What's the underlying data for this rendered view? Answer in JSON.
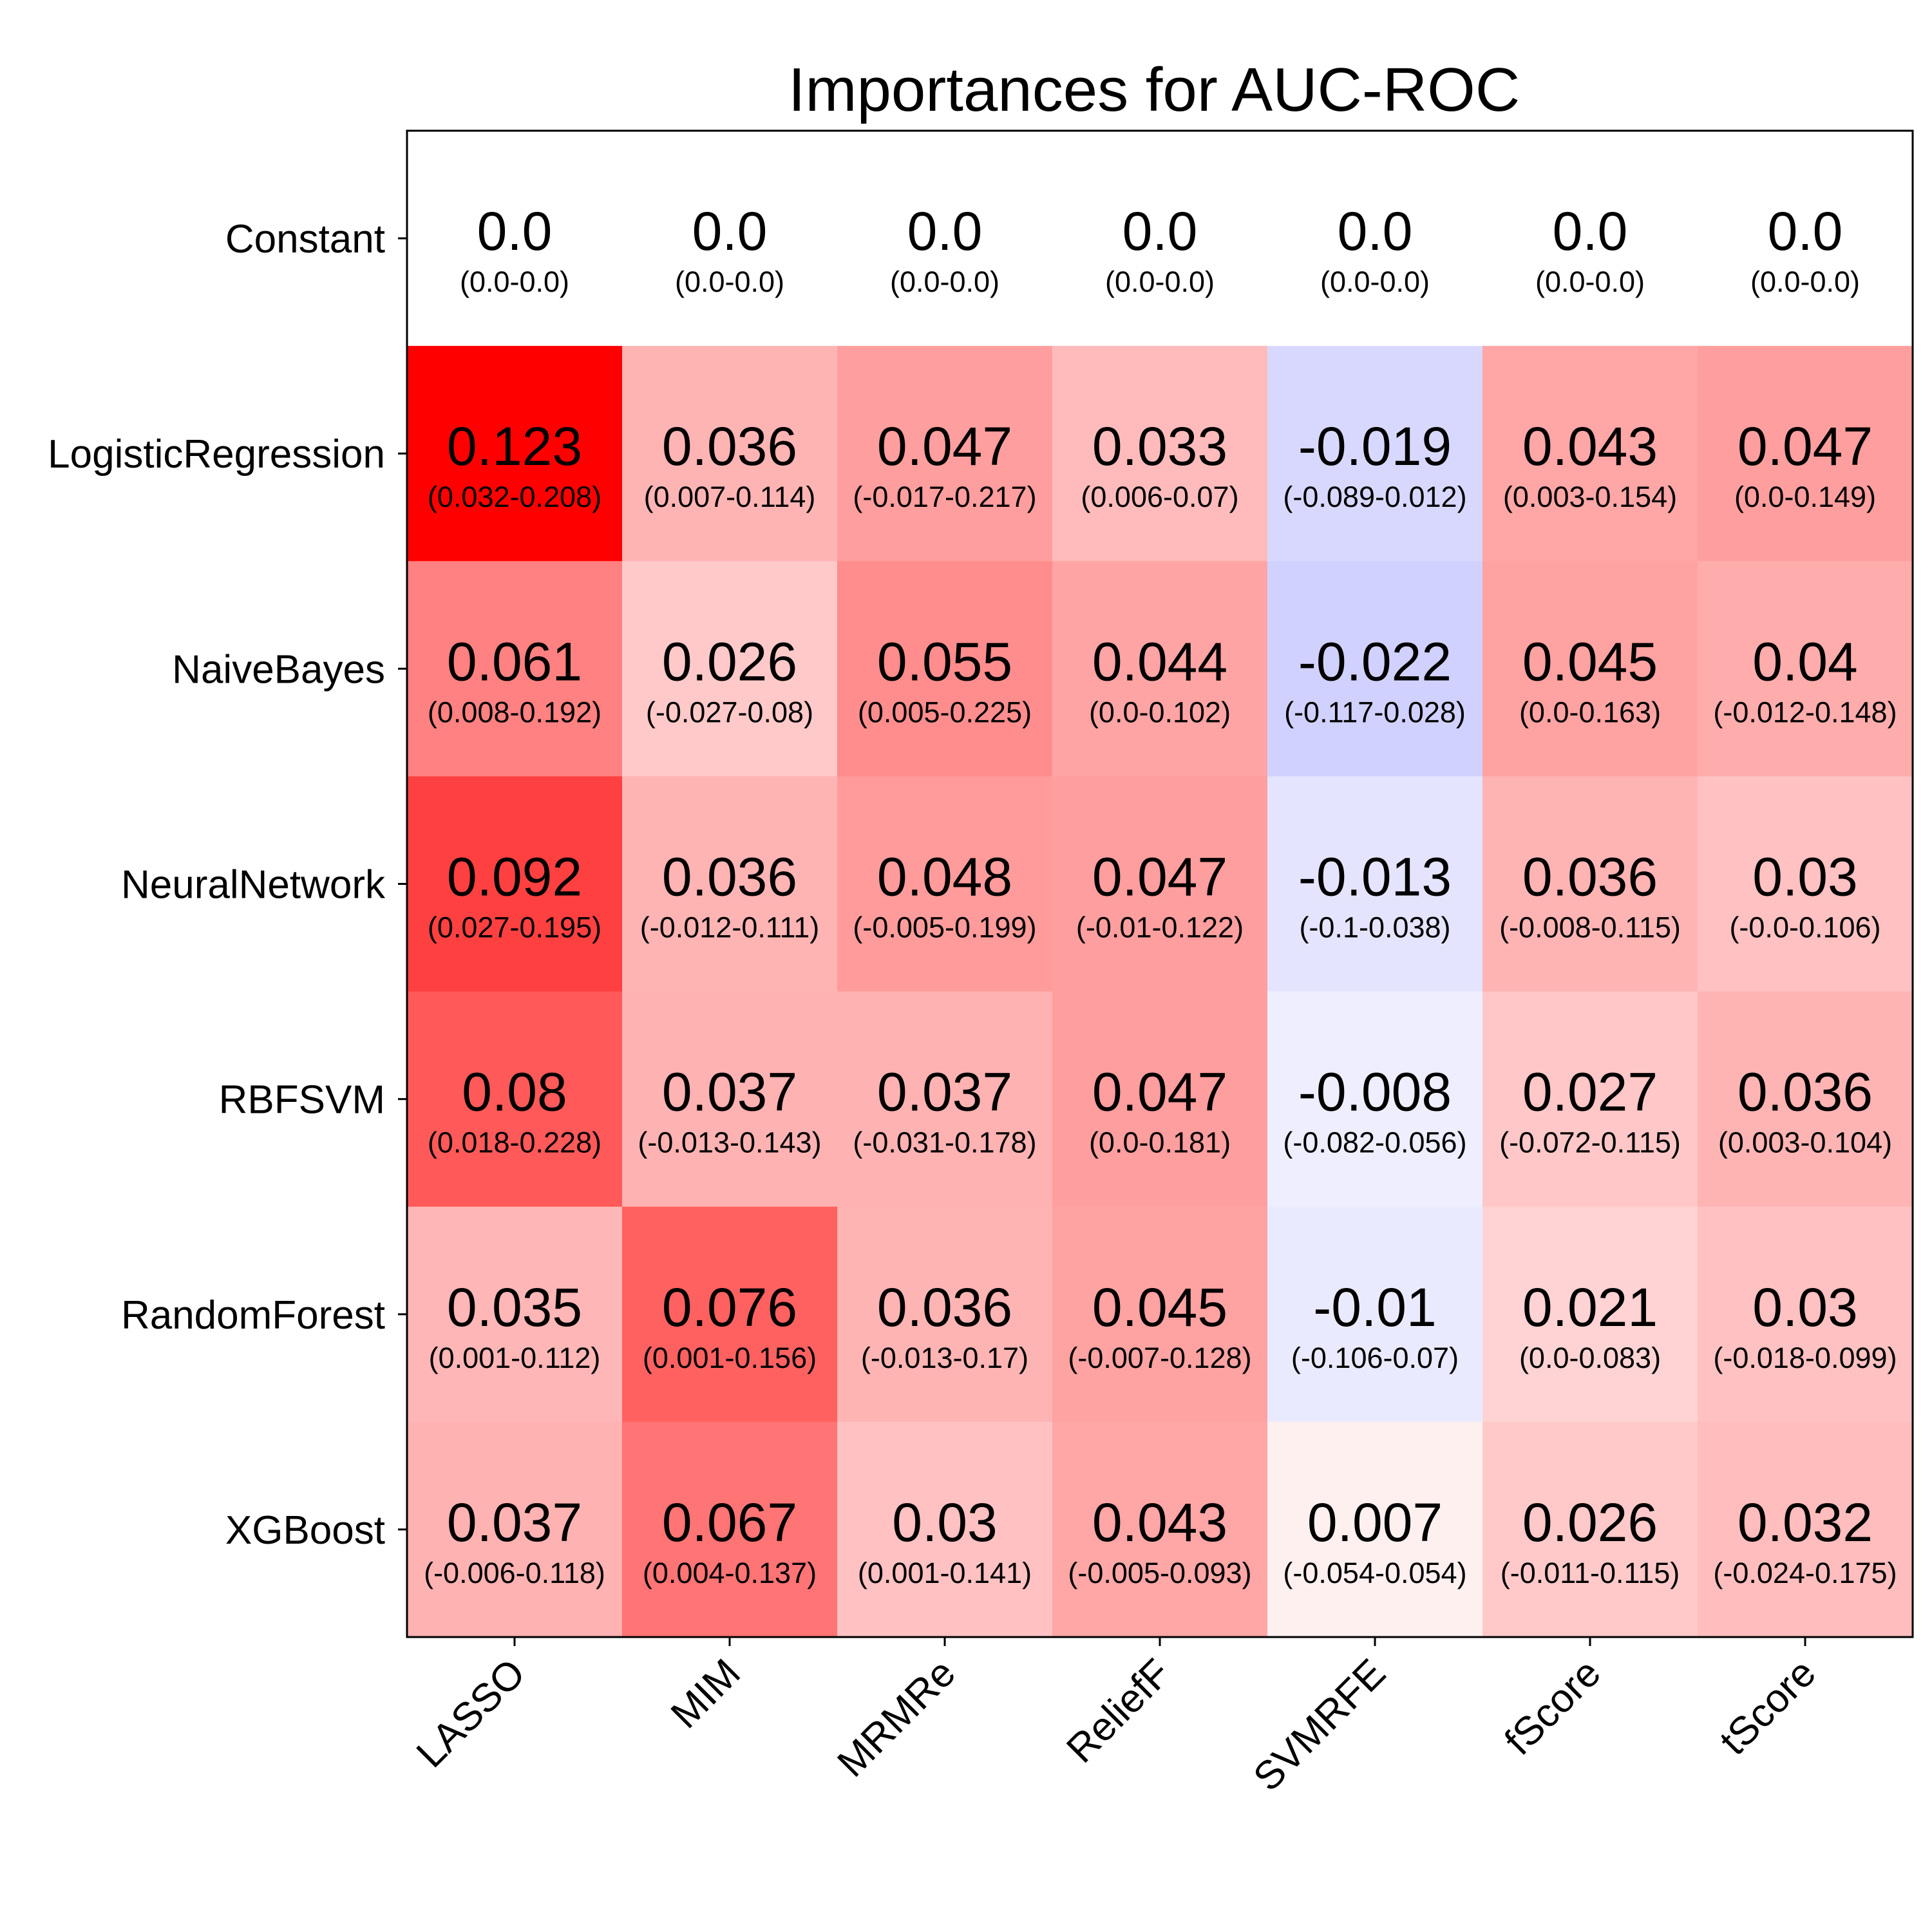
{
  "chart_data": {
    "type": "heatmap",
    "title": "Importances for AUC-ROC",
    "rows": [
      "Constant",
      "LogisticRegression",
      "NaiveBayes",
      "NeuralNetwork",
      "RBFSVM",
      "RandomForest",
      "XGBoost"
    ],
    "columns": [
      "LASSO",
      "MIM",
      "MRMRe",
      "ReliefF",
      "SVMRFE",
      "fScore",
      "tScore"
    ],
    "values": [
      [
        "0.0",
        "0.0",
        "0.0",
        "0.0",
        "0.0",
        "0.0",
        "0.0"
      ],
      [
        "0.123",
        "0.036",
        "0.047",
        "0.033",
        "-0.019",
        "0.043",
        "0.047"
      ],
      [
        "0.061",
        "0.026",
        "0.055",
        "0.044",
        "-0.022",
        "0.045",
        "0.04"
      ],
      [
        "0.092",
        "0.036",
        "0.048",
        "0.047",
        "-0.013",
        "0.036",
        "0.03"
      ],
      [
        "0.08",
        "0.037",
        "0.037",
        "0.047",
        "-0.008",
        "0.027",
        "0.036"
      ],
      [
        "0.035",
        "0.076",
        "0.036",
        "0.045",
        "-0.01",
        "0.021",
        "0.03"
      ],
      [
        "0.037",
        "0.067",
        "0.03",
        "0.043",
        "0.007",
        "0.026",
        "0.032"
      ]
    ],
    "intervals": [
      [
        "(0.0-0.0)",
        "(0.0-0.0)",
        "(0.0-0.0)",
        "(0.0-0.0)",
        "(0.0-0.0)",
        "(0.0-0.0)",
        "(0.0-0.0)"
      ],
      [
        "(0.032-0.208)",
        "(0.007-0.114)",
        "(-0.017-0.217)",
        "(0.006-0.07)",
        "(-0.089-0.012)",
        "(0.003-0.154)",
        "(0.0-0.149)"
      ],
      [
        "(0.008-0.192)",
        "(-0.027-0.08)",
        "(0.005-0.225)",
        "(0.0-0.102)",
        "(-0.117-0.028)",
        "(0.0-0.163)",
        "(-0.012-0.148)"
      ],
      [
        "(0.027-0.195)",
        "(-0.012-0.111)",
        "(-0.005-0.199)",
        "(-0.01-0.122)",
        "(-0.1-0.038)",
        "(-0.008-0.115)",
        "(-0.0-0.106)"
      ],
      [
        "(0.018-0.228)",
        "(-0.013-0.143)",
        "(-0.031-0.178)",
        "(0.0-0.181)",
        "(-0.082-0.056)",
        "(-0.072-0.115)",
        "(0.003-0.104)"
      ],
      [
        "(0.001-0.112)",
        "(0.001-0.156)",
        "(-0.013-0.17)",
        "(-0.007-0.128)",
        "(-0.106-0.07)",
        "(0.0-0.083)",
        "(-0.018-0.099)"
      ],
      [
        "(-0.006-0.118)",
        "(0.004-0.137)",
        "(0.001-0.141)",
        "(-0.005-0.093)",
        "(-0.054-0.054)",
        "(-0.011-0.115)",
        "(-0.024-0.175)"
      ]
    ],
    "colormap": "bwr",
    "color_range": [
      -0.123,
      0.123
    ],
    "colors": {
      "negative": "#0000ff",
      "zero": "#ffffff",
      "positive": "#ff0000"
    },
    "grid": false,
    "xtick_rotation": 45
  }
}
